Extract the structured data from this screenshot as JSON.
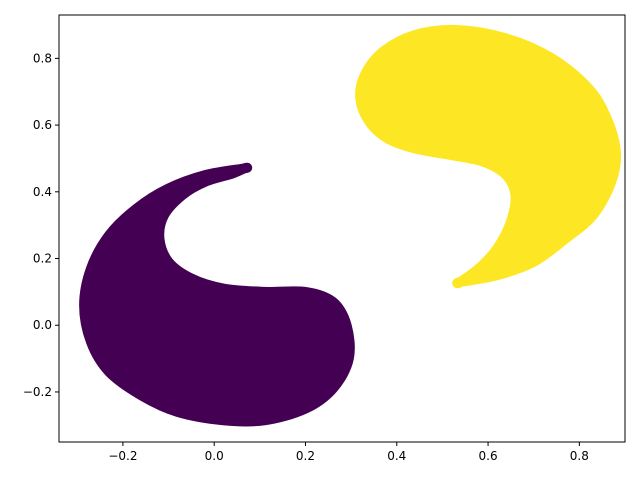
{
  "chart_data": {
    "type": "scatter",
    "title": "",
    "xlabel": "",
    "ylabel": "",
    "xlim": [
      -0.34,
      0.9
    ],
    "ylim": [
      -0.35,
      0.93
    ],
    "grid": false,
    "legend": "none",
    "x_ticks": [
      -0.2,
      0.0,
      0.2,
      0.4,
      0.6,
      0.8
    ],
    "x_tick_labels": [
      "−0.2",
      "0.0",
      "0.2",
      "0.4",
      "0.6",
      "0.8"
    ],
    "y_ticks": [
      -0.2,
      0.0,
      0.2,
      0.4,
      0.6,
      0.8
    ],
    "y_tick_labels": [
      "−0.2",
      "0.0",
      "0.2",
      "0.4",
      "0.6",
      "0.8"
    ],
    "series": [
      {
        "color": "#440154",
        "shape": "lower-left crescent",
        "points": [
          [
            0.065,
            0.47
          ],
          [
            -0.02,
            0.45
          ],
          [
            -0.1,
            0.41
          ],
          [
            -0.17,
            0.35
          ],
          [
            -0.23,
            0.27
          ],
          [
            -0.27,
            0.17
          ],
          [
            -0.285,
            0.06
          ],
          [
            -0.27,
            -0.05
          ],
          [
            -0.23,
            -0.14
          ],
          [
            -0.16,
            -0.21
          ],
          [
            -0.08,
            -0.26
          ],
          [
            0.02,
            -0.285
          ],
          [
            0.11,
            -0.285
          ],
          [
            0.2,
            -0.25
          ],
          [
            0.26,
            -0.19
          ],
          [
            0.295,
            -0.1
          ],
          [
            0.29,
            0.0
          ],
          [
            0.26,
            0.07
          ],
          [
            0.2,
            0.1
          ],
          [
            0.11,
            0.1
          ],
          [
            0.02,
            0.11
          ],
          [
            -0.05,
            0.14
          ],
          [
            -0.1,
            0.19
          ],
          [
            -0.12,
            0.26
          ],
          [
            -0.11,
            0.33
          ],
          [
            -0.07,
            0.39
          ],
          [
            -0.02,
            0.43
          ],
          [
            0.04,
            0.455
          ],
          [
            0.065,
            0.47
          ]
        ]
      },
      {
        "color": "#fde725",
        "shape": "upper-right crescent",
        "points": [
          [
            0.54,
            0.13
          ],
          [
            0.62,
            0.15
          ],
          [
            0.7,
            0.19
          ],
          [
            0.77,
            0.26
          ],
          [
            0.83,
            0.33
          ],
          [
            0.87,
            0.43
          ],
          [
            0.88,
            0.52
          ],
          [
            0.86,
            0.62
          ],
          [
            0.82,
            0.71
          ],
          [
            0.74,
            0.8
          ],
          [
            0.64,
            0.86
          ],
          [
            0.53,
            0.885
          ],
          [
            0.44,
            0.87
          ],
          [
            0.37,
            0.82
          ],
          [
            0.33,
            0.75
          ],
          [
            0.32,
            0.68
          ],
          [
            0.34,
            0.61
          ],
          [
            0.38,
            0.56
          ],
          [
            0.44,
            0.53
          ],
          [
            0.52,
            0.51
          ],
          [
            0.59,
            0.49
          ],
          [
            0.64,
            0.45
          ],
          [
            0.66,
            0.39
          ],
          [
            0.65,
            0.31
          ],
          [
            0.62,
            0.23
          ],
          [
            0.58,
            0.17
          ],
          [
            0.54,
            0.13
          ]
        ]
      }
    ]
  }
}
